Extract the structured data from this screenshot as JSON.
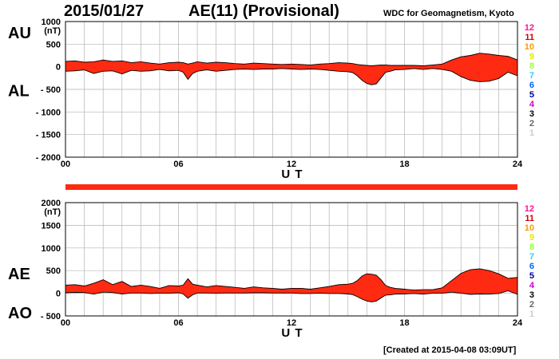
{
  "header": {
    "date": "2015/01/27",
    "title": "AE(11) (Provisional)",
    "source": "WDC for Geomagnetism, Kyoto"
  },
  "footer": {
    "created": "[Created at 2015-04-08 03:09UT]"
  },
  "colors": {
    "fill": "#ff2a12",
    "grid": "#b3b3b3",
    "line": "#000000"
  },
  "station_legend": [
    {
      "label": "12",
      "color": "#ff1493"
    },
    {
      "label": "11",
      "color": "#d40000"
    },
    {
      "label": "10",
      "color": "#ff9900"
    },
    {
      "label": "9",
      "color": "#e6e600"
    },
    {
      "label": "8",
      "color": "#99ff33"
    },
    {
      "label": "7",
      "color": "#33ccff"
    },
    {
      "label": "6",
      "color": "#0066ff"
    },
    {
      "label": "5",
      "color": "#000099"
    },
    {
      "label": "4",
      "color": "#cc00cc"
    },
    {
      "label": "3",
      "color": "#000000"
    },
    {
      "label": "2",
      "color": "#666666"
    },
    {
      "label": "1",
      "color": "#cccccc"
    }
  ],
  "chart_data": [
    {
      "type": "area",
      "panel": "AU/AL",
      "left_labels": [
        "AU",
        "AL"
      ],
      "unit": "(nT)",
      "xlabel": "U T",
      "xlim": [
        0,
        24
      ],
      "xticks": [
        0,
        6,
        12,
        18,
        24
      ],
      "xtick_labels": [
        "00",
        "06",
        "12",
        "18",
        "24"
      ],
      "ylim": [
        -2000,
        1000
      ],
      "yticks": [
        1000,
        500,
        0,
        -500,
        -1000,
        -1500,
        -2000
      ],
      "ytick_labels": [
        "1000",
        "500",
        "0",
        "- 500",
        "- 1000",
        "- 1500",
        "- 2000"
      ],
      "grid": true,
      "hour": [
        0,
        0.5,
        1,
        1.5,
        2,
        2.5,
        3,
        3.5,
        4,
        4.5,
        5,
        5.5,
        6,
        6.25,
        6.5,
        6.75,
        7,
        7.5,
        8,
        8.5,
        9,
        9.5,
        10,
        10.5,
        11,
        11.5,
        12,
        12.5,
        13,
        13.5,
        14,
        14.5,
        15,
        15.25,
        15.5,
        15.75,
        16,
        16.25,
        16.5,
        16.75,
        17,
        17.25,
        17.5,
        18,
        18.5,
        19,
        19.5,
        20,
        20.5,
        21,
        21.5,
        22,
        22.5,
        23,
        23.5,
        24
      ],
      "series": [
        {
          "name": "AU",
          "values": [
            120,
            130,
            100,
            110,
            150,
            120,
            130,
            90,
            110,
            80,
            60,
            90,
            100,
            90,
            60,
            80,
            110,
            80,
            100,
            90,
            70,
            60,
            80,
            70,
            60,
            50,
            60,
            50,
            40,
            60,
            70,
            90,
            80,
            70,
            50,
            40,
            30,
            20,
            30,
            40,
            40,
            30,
            30,
            30,
            30,
            20,
            40,
            60,
            150,
            220,
            250,
            300,
            280,
            250,
            230,
            150
          ]
        },
        {
          "name": "AL",
          "values": [
            -100,
            -90,
            -70,
            -150,
            -100,
            -90,
            -160,
            -80,
            -100,
            -90,
            -60,
            -90,
            -80,
            -120,
            -280,
            -150,
            -100,
            -70,
            -100,
            -80,
            -60,
            -50,
            -60,
            -50,
            -50,
            -40,
            -50,
            -60,
            -50,
            -60,
            -80,
            -100,
            -110,
            -130,
            -200,
            -300,
            -370,
            -400,
            -380,
            -250,
            -120,
            -100,
            -70,
            -60,
            -40,
            -60,
            -40,
            -60,
            -100,
            -220,
            -300,
            -330,
            -320,
            -260,
            -120,
            -200
          ]
        }
      ]
    },
    {
      "type": "area",
      "panel": "AE/AO",
      "left_labels": [
        "AE",
        "AO"
      ],
      "unit": "(nT)",
      "xlabel": "U T",
      "xlim": [
        0,
        24
      ],
      "xticks": [
        0,
        6,
        12,
        18,
        24
      ],
      "xtick_labels": [
        "00",
        "06",
        "12",
        "18",
        "24"
      ],
      "ylim": [
        -500,
        2000
      ],
      "yticks": [
        2000,
        1500,
        1000,
        500,
        0,
        -500
      ],
      "ytick_labels": [
        "2000",
        "1500",
        "1000",
        "500",
        "0",
        "- 500"
      ],
      "grid": true,
      "hour": [
        0,
        0.5,
        1,
        1.5,
        2,
        2.5,
        3,
        3.5,
        4,
        4.5,
        5,
        5.5,
        6,
        6.25,
        6.5,
        6.75,
        7,
        7.5,
        8,
        8.5,
        9,
        9.5,
        10,
        10.5,
        11,
        11.5,
        12,
        12.5,
        13,
        13.5,
        14,
        14.5,
        15,
        15.25,
        15.5,
        15.75,
        16,
        16.25,
        16.5,
        16.75,
        17,
        17.25,
        17.5,
        18,
        18.5,
        19,
        19.5,
        20,
        20.5,
        21,
        21.5,
        22,
        22.5,
        23,
        23.5,
        24
      ],
      "series": [
        {
          "name": "AE",
          "values": [
            180,
            190,
            160,
            220,
            300,
            190,
            260,
            150,
            180,
            150,
            110,
            170,
            160,
            180,
            320,
            200,
            180,
            140,
            170,
            150,
            130,
            110,
            140,
            120,
            110,
            90,
            110,
            110,
            90,
            120,
            150,
            190,
            200,
            220,
            280,
            380,
            430,
            420,
            400,
            300,
            170,
            130,
            110,
            90,
            70,
            80,
            80,
            120,
            280,
            440,
            520,
            540,
            500,
            430,
            330,
            350
          ]
        },
        {
          "name": "AO",
          "values": [
            10,
            20,
            15,
            -20,
            25,
            15,
            -15,
            5,
            5,
            -5,
            0,
            0,
            10,
            -15,
            -110,
            -35,
            5,
            5,
            0,
            5,
            5,
            5,
            10,
            10,
            5,
            5,
            5,
            -5,
            -5,
            0,
            -5,
            -5,
            -15,
            -30,
            -75,
            -130,
            -170,
            -190,
            -175,
            -105,
            -40,
            -35,
            -20,
            -15,
            -5,
            -20,
            0,
            0,
            25,
            0,
            -25,
            -15,
            -20,
            -5,
            55,
            -25
          ]
        }
      ]
    }
  ]
}
